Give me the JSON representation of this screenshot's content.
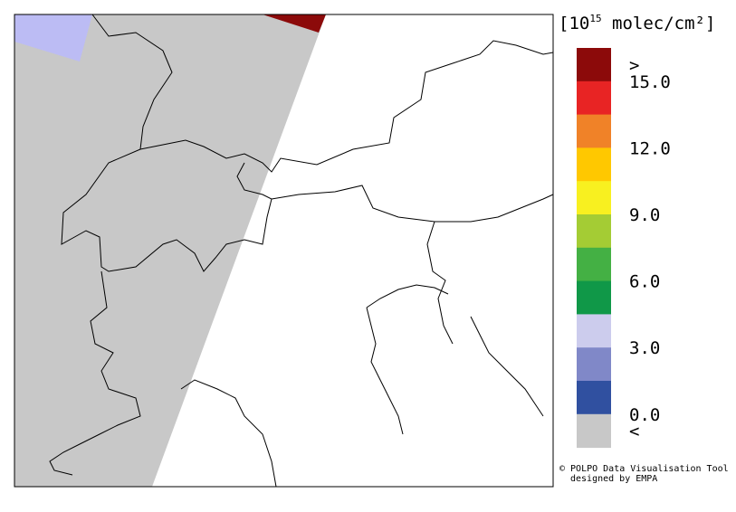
{
  "legend": {
    "title": {
      "prefix": "[10",
      "exponent": "15",
      "suffix": " molec/cm²]"
    },
    "colors": [
      "#8c0a0a",
      "#e82424",
      "#f08228",
      "#ffc800",
      "#f8f020",
      "#a4cc34",
      "#44b044",
      "#109848",
      "#cccced",
      "#8088c8",
      "#3050a0",
      "#c8c8c8"
    ],
    "labels": [
      ">",
      "15.0",
      "12.0",
      "9.0",
      "6.0",
      "3.0",
      "0.0",
      "<"
    ]
  },
  "credits": [
    "© POLPO Data Visualisation Tool",
    "designed by EMPA"
  ]
}
